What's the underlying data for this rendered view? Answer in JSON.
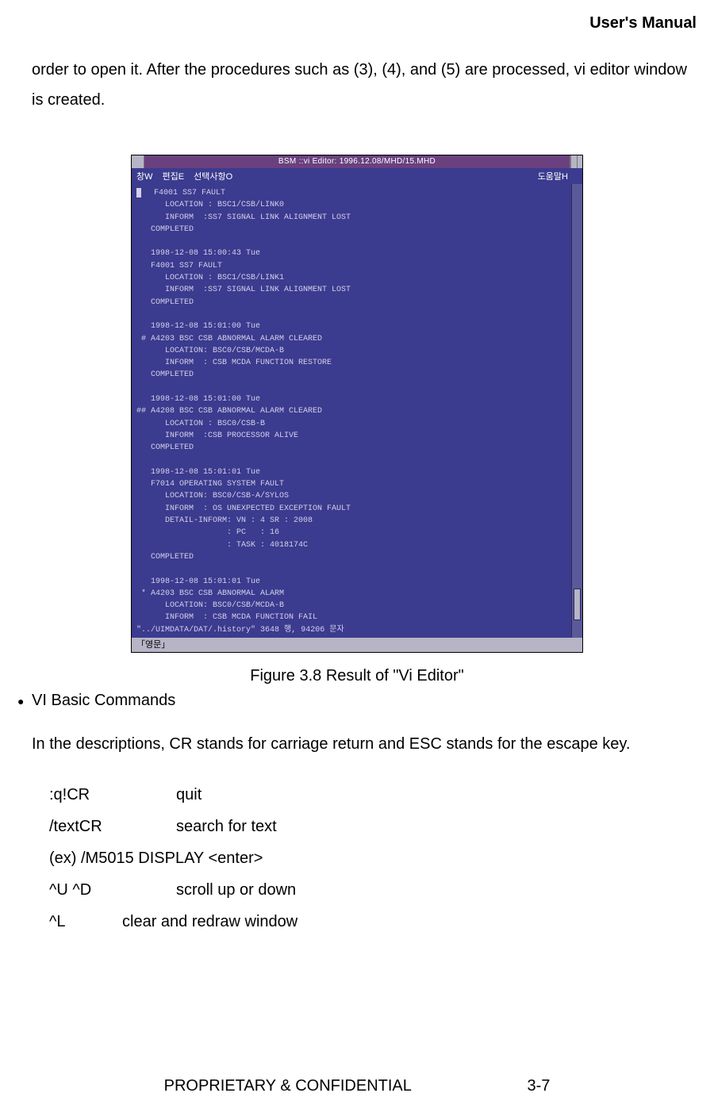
{
  "header": {
    "title": "User's Manual"
  },
  "intro_paragraph": "order to open it. After the procedures such as (3), (4), and (5) are processed, vi editor window is created.",
  "window": {
    "titlebar": "BSM ::vi Editor: 1996.12.08/MHD/15.MHD",
    "titlebar_bg": "#6a407f",
    "titlebar_fg": "#ffffff",
    "frame_bg": "#b7b4c6",
    "menubar_bg": "#3b3b8f",
    "editor_bg": "#3b3b8f",
    "editor_fg": "#d4d0ea",
    "menu": {
      "items": [
        "창W",
        "편집E",
        "선택사항O"
      ],
      "right": "도움말H"
    },
    "editor_lines": [
      "  F4001 SS7 FAULT",
      "      LOCATION : BSC1/CSB/LINK0",
      "      INFORM  :SS7 SIGNAL LINK ALIGNMENT LOST",
      "   COMPLETED",
      "",
      "   1998-12-08 15:00:43 Tue",
      "   F4001 SS7 FAULT",
      "      LOCATION : BSC1/CSB/LINK1",
      "      INFORM  :SS7 SIGNAL LINK ALIGNMENT LOST",
      "   COMPLETED",
      "",
      "   1998-12-08 15:01:00 Tue",
      " # A4203 BSC CSB ABNORMAL ALARM CLEARED",
      "      LOCATION: BSC0/CSB/MCDA-B",
      "      INFORM  : CSB MCDA FUNCTION RESTORE",
      "   COMPLETED",
      "",
      "   1998-12-08 15:01:00 Tue",
      "## A4208 BSC CSB ABNORMAL ALARM CLEARED",
      "      LOCATION : BSC0/CSB-B",
      "      INFORM  :CSB PROCESSOR ALIVE",
      "   COMPLETED",
      "",
      "   1998-12-08 15:01:01 Tue",
      "   F7014 OPERATING SYSTEM FAULT",
      "      LOCATION: BSC0/CSB-A/SYLOS",
      "      INFORM  : OS UNEXPECTED EXCEPTION FAULT",
      "      DETAIL-INFORM: VN : 4 SR : 2008",
      "                   : PC   : 16",
      "                   : TASK : 4018174C",
      "   COMPLETED",
      "",
      "   1998-12-08 15:01:01 Tue",
      " * A4203 BSC CSB ABNORMAL ALARM",
      "      LOCATION: BSC0/CSB/MCDA-B",
      "      INFORM  : CSB MCDA FUNCTION FAIL",
      "\"../UIMDATA/DAT/.history\" 3648 행, 94206 문자"
    ],
    "status": "「영문」"
  },
  "caption": "Figure 3.8 Result of \"Vi Editor\"",
  "bullet": {
    "label": "VI Basic Commands"
  },
  "desc": "In the descriptions, CR stands for carriage return and ESC stands for the escape key.",
  "commands": {
    "rows": [
      {
        "key": ":q!CR",
        "desc": "quit"
      },
      {
        "key": "/textCR",
        "desc": "search for text"
      }
    ],
    "example": "(ex)  /M5015 DISPLAY <enter>",
    "rows2": [
      {
        "key": "^U ^D",
        "desc": "scroll up or down"
      },
      {
        "key": "^L",
        "desc": "clear and redraw window"
      }
    ]
  },
  "footer": {
    "left": "PROPRIETARY & CONFIDENTIAL",
    "right": "3-7"
  }
}
